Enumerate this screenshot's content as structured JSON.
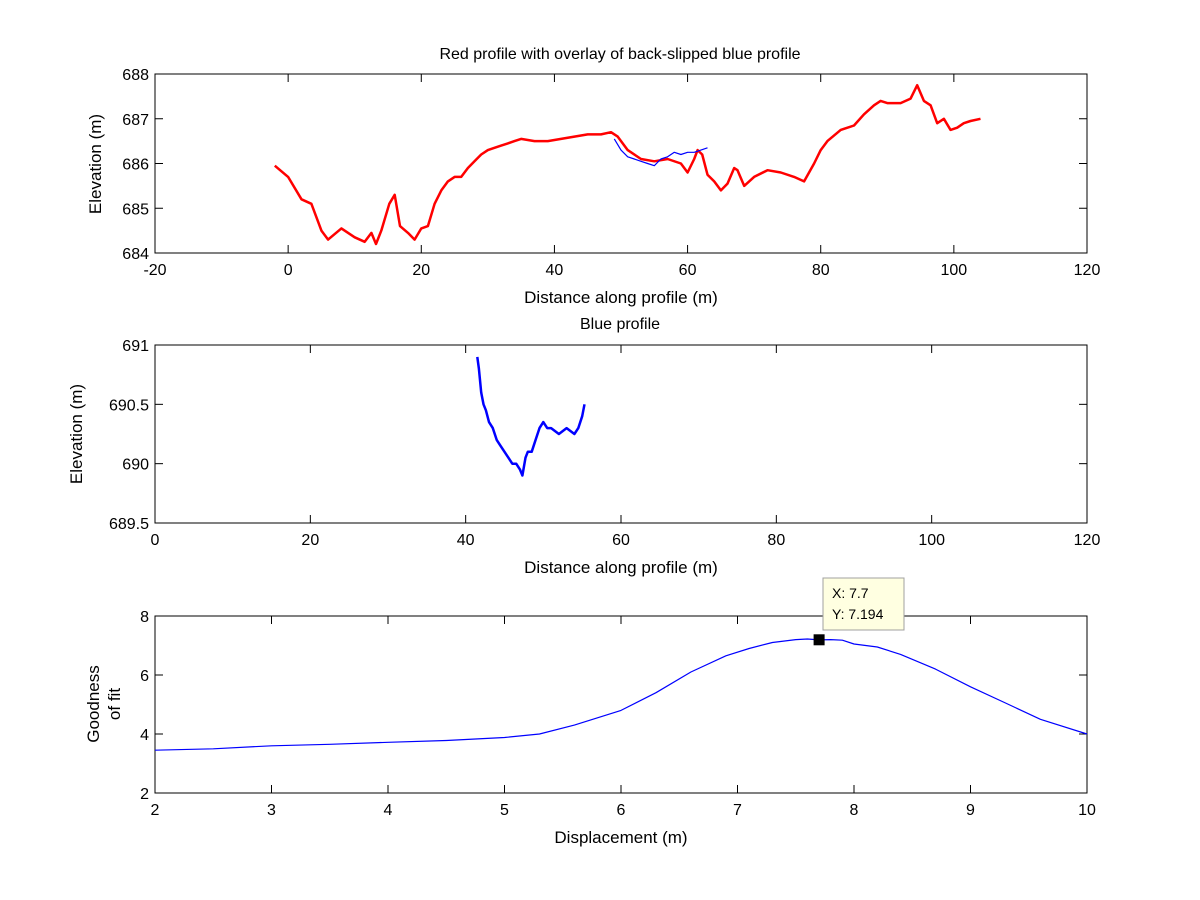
{
  "chart_data": [
    {
      "type": "line",
      "title": "Red profile with overlay of back-slipped blue profile",
      "xlabel": "Distance along profile (m)",
      "ylabel": "Elevation (m)",
      "xlim": [
        -20,
        120
      ],
      "ylim": [
        684,
        688
      ],
      "xticks": [
        -20,
        0,
        20,
        40,
        60,
        80,
        100,
        120
      ],
      "yticks": [
        684,
        685,
        686,
        687,
        688
      ],
      "grid": false,
      "series": [
        {
          "name": "Red profile",
          "color": "#ff0000",
          "x": [
            -2,
            0,
            2,
            3.5,
            5,
            6,
            8,
            10,
            11.5,
            12.5,
            13.2,
            14,
            15.2,
            16,
            16.8,
            18,
            19,
            20,
            21,
            22,
            23,
            24,
            25,
            26,
            27,
            28,
            29,
            30,
            31,
            32,
            33,
            34,
            35,
            37,
            39,
            41,
            43,
            45,
            47,
            48.5,
            49.5,
            51,
            53,
            55,
            57,
            59,
            60,
            61,
            61.5,
            62.2,
            63,
            64,
            65,
            66,
            67,
            67.5,
            68.5,
            70,
            72,
            74,
            76,
            77.5,
            79,
            80,
            81,
            83,
            85,
            86.5,
            88,
            89,
            90,
            92,
            93.5,
            94.5,
            95.5,
            96.5,
            97.5,
            98.5,
            99.5,
            100.5,
            101.5,
            102.5,
            104
          ],
          "y": [
            685.95,
            685.7,
            685.2,
            685.1,
            684.5,
            684.3,
            684.55,
            684.35,
            684.25,
            684.45,
            684.2,
            684.5,
            685.1,
            685.3,
            684.6,
            684.45,
            684.3,
            684.55,
            684.6,
            685.1,
            685.4,
            685.6,
            685.7,
            685.7,
            685.9,
            686.05,
            686.2,
            686.3,
            686.35,
            686.4,
            686.45,
            686.5,
            686.55,
            686.5,
            686.5,
            686.55,
            686.6,
            686.65,
            686.65,
            686.7,
            686.6,
            686.3,
            686.1,
            686.05,
            686.1,
            686.0,
            685.8,
            686.1,
            686.3,
            686.2,
            685.75,
            685.6,
            685.4,
            685.55,
            685.9,
            685.85,
            685.5,
            685.7,
            685.85,
            685.8,
            685.7,
            685.6,
            686.0,
            686.3,
            686.5,
            686.75,
            686.85,
            687.1,
            687.3,
            687.4,
            687.35,
            687.35,
            687.45,
            687.75,
            687.4,
            687.3,
            686.9,
            687.0,
            686.75,
            686.8,
            686.9,
            686.95,
            687.0
          ]
        },
        {
          "name": "Back-slipped blue profile",
          "color": "#0000ff",
          "x": [
            49,
            50,
            51,
            52,
            53,
            54,
            55,
            56,
            57,
            58,
            59,
            60,
            61,
            62,
            63
          ],
          "y": [
            686.55,
            686.3,
            686.15,
            686.1,
            686.05,
            686.0,
            685.95,
            686.1,
            686.15,
            686.25,
            686.2,
            686.25,
            686.25,
            686.3,
            686.35
          ]
        }
      ]
    },
    {
      "type": "line",
      "title": "Blue profile",
      "xlabel": "Distance along profile (m)",
      "ylabel": "Elevation (m)",
      "xlim": [
        0,
        120
      ],
      "ylim": [
        689.5,
        691
      ],
      "xticks": [
        0,
        20,
        40,
        60,
        80,
        100,
        120
      ],
      "yticks": [
        689.5,
        690,
        690.5,
        691
      ],
      "ytick_labels": [
        "689.5",
        "690",
        "690.5",
        "691"
      ],
      "grid": false,
      "series": [
        {
          "name": "Blue profile",
          "color": "#0000ff",
          "x": [
            41.5,
            41.7,
            42,
            42.3,
            42.6,
            43,
            43.5,
            44,
            44.5,
            45,
            45.5,
            46,
            46.5,
            47,
            47.3,
            47.7,
            48,
            48.5,
            49,
            49.5,
            50,
            50.5,
            51,
            52,
            53,
            54,
            54.5,
            55,
            55.3
          ],
          "y": [
            690.9,
            690.8,
            690.6,
            690.5,
            690.45,
            690.35,
            690.3,
            690.2,
            690.15,
            690.1,
            690.05,
            690.0,
            690.0,
            689.95,
            689.9,
            690.05,
            690.1,
            690.1,
            690.2,
            690.3,
            690.35,
            690.3,
            690.3,
            690.25,
            690.3,
            690.25,
            690.3,
            690.4,
            690.5
          ]
        }
      ]
    },
    {
      "type": "line",
      "title": "",
      "xlabel": "Displacement (m)",
      "ylabel_lines": [
        "Goodness",
        "of fit"
      ],
      "xlim": [
        2,
        10
      ],
      "ylim": [
        2,
        8
      ],
      "xticks": [
        2,
        3,
        4,
        5,
        6,
        7,
        8,
        9,
        10
      ],
      "yticks": [
        2,
        4,
        6,
        8
      ],
      "grid": false,
      "series": [
        {
          "name": "Goodness of fit",
          "color": "#0000ff",
          "x": [
            2,
            2.5,
            3,
            3.5,
            4,
            4.5,
            5,
            5.3,
            5.6,
            6,
            6.3,
            6.6,
            6.9,
            7.1,
            7.3,
            7.5,
            7.6,
            7.7,
            7.8,
            7.9,
            8,
            8.2,
            8.4,
            8.7,
            9,
            9.3,
            9.6,
            10
          ],
          "y": [
            3.45,
            3.5,
            3.6,
            3.65,
            3.72,
            3.78,
            3.88,
            4.0,
            4.3,
            4.8,
            5.4,
            6.1,
            6.65,
            6.9,
            7.1,
            7.2,
            7.22,
            7.19,
            7.2,
            7.18,
            7.05,
            6.95,
            6.7,
            6.2,
            5.6,
            5.05,
            4.5,
            4.0
          ]
        }
      ],
      "datatip": {
        "x": 7.7,
        "y": 7.194,
        "x_label": "X: 7.7",
        "y_label": "Y: 7.194"
      }
    }
  ]
}
